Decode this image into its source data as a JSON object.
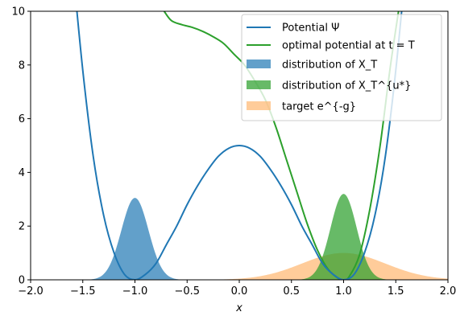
{
  "chart_data": {
    "type": "line",
    "xlabel": "x",
    "ylabel": "",
    "xlim": [
      -2.0,
      2.0
    ],
    "ylim": [
      0,
      10
    ],
    "xticks": [
      "−2.0",
      "−1.5",
      "−1.0",
      "−0.5",
      "0.0",
      "0.5",
      "1.0",
      "1.5",
      "2.0"
    ],
    "yticks": [
      "0",
      "2",
      "4",
      "6",
      "8",
      "10"
    ],
    "legend_position": "top-right",
    "colors": {
      "potential": "#1f77b4",
      "optimal": "#2ca02c",
      "dist_xt": "#1f77b4",
      "dist_xtu": "#2ca02c",
      "target": "#ffbb78"
    },
    "series": [
      {
        "name": "Potential Ψ",
        "kind": "line",
        "description": "5*(x^2-1)^2",
        "x": [
          -1.6,
          -1.5,
          -1.4,
          -1.3,
          -1.2,
          -1.1,
          -1.0,
          -0.9,
          -0.8,
          -0.7,
          -0.6,
          -0.5,
          -0.4,
          -0.3,
          -0.2,
          -0.1,
          0.0,
          0.1,
          0.2,
          0.3,
          0.4,
          0.5,
          0.6,
          0.7,
          0.8,
          0.9,
          1.0,
          1.1,
          1.2,
          1.3,
          1.4,
          1.5,
          1.6
        ],
        "y": [
          11.8,
          7.8,
          4.6,
          2.4,
          1.0,
          0.2,
          0.0,
          0.2,
          0.6,
          1.3,
          2.0,
          2.8,
          3.5,
          4.1,
          4.6,
          4.9,
          5.0,
          4.9,
          4.6,
          4.1,
          3.5,
          2.8,
          2.0,
          1.3,
          0.6,
          0.2,
          0.0,
          0.2,
          1.0,
          2.4,
          4.6,
          7.8,
          11.8
        ]
      },
      {
        "name": "optimal potential at t = T",
        "kind": "line",
        "x": [
          -0.72,
          -0.65,
          -0.55,
          -0.45,
          -0.35,
          -0.25,
          -0.15,
          -0.05,
          0.05,
          0.15,
          0.25,
          0.35,
          0.45,
          0.55,
          0.65,
          0.75,
          0.85,
          0.95,
          1.0,
          1.05,
          1.15,
          1.25,
          1.35,
          1.45,
          1.55
        ],
        "y": [
          10.0,
          9.65,
          9.5,
          9.4,
          9.25,
          9.05,
          8.8,
          8.4,
          8.0,
          7.4,
          6.7,
          5.7,
          4.5,
          3.3,
          2.1,
          1.1,
          0.4,
          0.05,
          0.0,
          0.1,
          0.9,
          2.6,
          5.0,
          8.0,
          10.6
        ]
      },
      {
        "name": "distribution of X_T",
        "kind": "density",
        "center": -1.0,
        "peak": 3.05,
        "sigma": 0.13
      },
      {
        "name": "distribution of X_T^{u*}",
        "kind": "density",
        "center": 1.0,
        "peak": 3.2,
        "sigma": 0.125
      },
      {
        "name": "target e^{-g}",
        "kind": "density",
        "center": 1.0,
        "peak": 1.0,
        "sigma": 0.4
      }
    ]
  },
  "legend": {
    "items": [
      {
        "label": "Potential Ψ"
      },
      {
        "label": "optimal potential at t = T"
      },
      {
        "label": "distribution of X_T"
      },
      {
        "label": "distribution of X_T^{u*}"
      },
      {
        "label": "target e^{-g}"
      }
    ]
  }
}
